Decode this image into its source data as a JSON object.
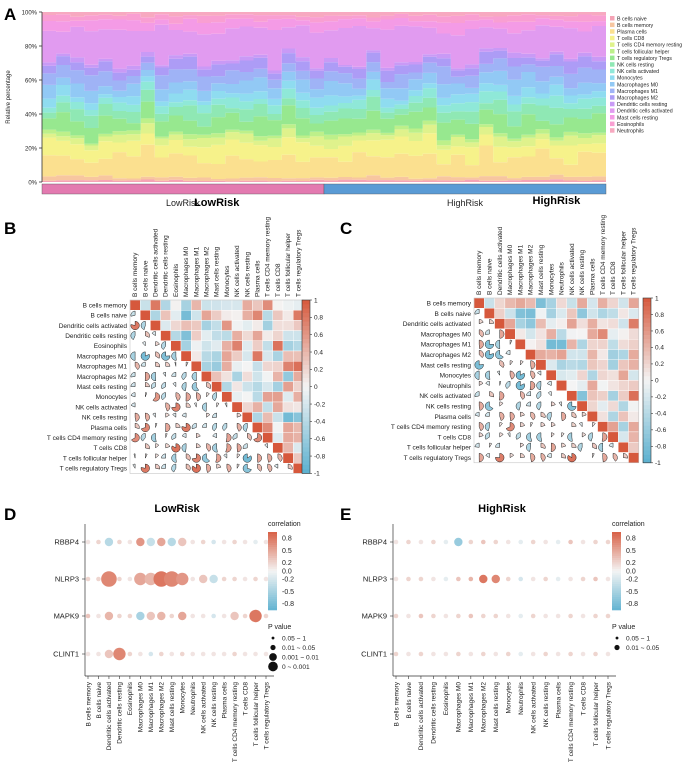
{
  "panels": {
    "a": "A",
    "b": "B",
    "c": "C",
    "d": "D",
    "e": "E"
  },
  "colors": {
    "pos": "#d6583c",
    "neg": "#5bb0cf",
    "mid": "#f4f4f4",
    "low_group": "#e37ab0",
    "high_group": "#5a9bd5"
  },
  "chart_data": [
    {
      "id": "A",
      "type": "area",
      "subtype": "stacked-100",
      "ylabel": "Relative percentage",
      "yticks": [
        "0%",
        "20%",
        "40%",
        "60%",
        "80%",
        "100%"
      ],
      "ylim": [
        0,
        100
      ],
      "n_samples": 40,
      "groups": [
        {
          "name": "LowRisk",
          "count": 20,
          "color": "#e37ab0"
        },
        {
          "name": "HighRisk",
          "count": 20,
          "color": "#5a9bd5"
        }
      ],
      "legend": [
        {
          "name": "B cells naive",
          "color": "#f5a3b5"
        },
        {
          "name": "B cells memory",
          "color": "#f7c6a0"
        },
        {
          "name": "Plasma cells",
          "color": "#fbe08f"
        },
        {
          "name": "T cells CD8",
          "color": "#f6f28a"
        },
        {
          "name": "T cells CD4 memory resting",
          "color": "#dff28c"
        },
        {
          "name": "T cells follicular helper",
          "color": "#bdf08a"
        },
        {
          "name": "T cells regulatory Tregs",
          "color": "#97e88f"
        },
        {
          "name": "NK cells resting",
          "color": "#8fe8b4"
        },
        {
          "name": "NK cells activated",
          "color": "#8fe8d8"
        },
        {
          "name": "Monocytes",
          "color": "#8fdcf0"
        },
        {
          "name": "Macrophages M0",
          "color": "#92c9f5"
        },
        {
          "name": "Macrophages M1",
          "color": "#9fb3f6"
        },
        {
          "name": "Macrophages M2",
          "color": "#ad9cf6"
        },
        {
          "name": "Dendritic cells resting",
          "color": "#c99af6"
        },
        {
          "name": "Dendritic cells activated",
          "color": "#e19bf0"
        },
        {
          "name": "Mast cells resting",
          "color": "#f49be6"
        },
        {
          "name": "Eosinophils",
          "color": "#f99fd2"
        },
        {
          "name": "Neutrophils",
          "color": "#f7a9c0"
        }
      ],
      "stack_order": [
        "B cells naive",
        "B cells memory",
        "Plasma cells",
        "T cells CD8",
        "T cells CD4 memory resting",
        "T cells follicular helper",
        "T cells regulatory Tregs",
        "NK cells resting",
        "NK cells activated",
        "Monocytes",
        "Macrophages M0",
        "Macrophages M1",
        "Macrophages M2",
        "Dendritic cells resting",
        "Dendritic cells activated",
        "Mast cells resting",
        "Eosinophils",
        "Neutrophils"
      ],
      "mean_composition": [
        1,
        2,
        12,
        8,
        4,
        2,
        8,
        6,
        5,
        4,
        6,
        7,
        5,
        2,
        18,
        5,
        3,
        2
      ]
    },
    {
      "id": "B",
      "type": "heatmap",
      "subtype": "correlation-matrix",
      "title": "LowRisk",
      "labels": [
        "B cells memory",
        "B cells naive",
        "Dendritic cells activated",
        "Dendritic cells resting",
        "Eosinophils",
        "Macrophages M0",
        "Macrophages M1",
        "Macrophages M2",
        "Mast cells resting",
        "Monocytes",
        "NK cells activated",
        "NK cells resting",
        "Plasma cells",
        "T cells CD4 memory resting",
        "T cells CD8",
        "T cells follicular helper",
        "T cells regulatory Tregs"
      ],
      "colorbar_ticks": [
        "1",
        "0.8",
        "0.6",
        "0.4",
        "0.2",
        "0",
        "-0.2",
        "-0.4",
        "-0.6",
        "-0.8",
        "-1"
      ],
      "range": [
        -1,
        1
      ],
      "seed": 11
    },
    {
      "id": "C",
      "type": "heatmap",
      "subtype": "correlation-matrix",
      "title": "HighRisk",
      "labels": [
        "B cells memory",
        "B cells naive",
        "Dendritic cells activated",
        "Macrophages M0",
        "Macrophages M1",
        "Macrophages M2",
        "Mast cells resting",
        "Monocytes",
        "Neutrophils",
        "NK cells activated",
        "NK cells resting",
        "Plasma cells",
        "T cells CD4 memory resting",
        "T cells CD8",
        "T cells follicular helper",
        "T cells regulatory Tregs"
      ],
      "colorbar_ticks": [
        "1",
        "0.8",
        "0.6",
        "0.4",
        "0.2",
        "0",
        "-0.2",
        "-0.4",
        "-0.6",
        "-0.8",
        "-1"
      ],
      "range": [
        -1,
        1
      ],
      "seed": 29
    },
    {
      "id": "D",
      "type": "scatter",
      "subtype": "dot-plot",
      "title": "LowRisk",
      "genes": [
        "RBBP4",
        "NLRP3",
        "MAPK9",
        "CLINT1"
      ],
      "cells": [
        "B cells memory",
        "B cells naive",
        "Dendritic cells activated",
        "Dendritic cells resting",
        "Eosinophils",
        "Macrophages M0",
        "Macrophages M1",
        "Macrophages M2",
        "Mast cells resting",
        "Monocytes",
        "Neutrophils",
        "NK cells activated",
        "NK cells resting",
        "Plasma cells",
        "T cells CD4 memory resting",
        "T cells CD8",
        "T cells follicular helper",
        "T cells regulatory Tregs"
      ],
      "correlation": [
        [
          0.1,
          0.2,
          -0.4,
          0.2,
          0.1,
          0.6,
          -0.3,
          0.5,
          -0.4,
          0.3,
          0.1,
          0.2,
          -0.2,
          0.1,
          0.2,
          0.1,
          -0.1,
          0.1
        ],
        [
          0.2,
          0.2,
          0.7,
          0.2,
          0.1,
          0.5,
          0.4,
          0.8,
          0.7,
          0.6,
          0.1,
          0.3,
          -0.3,
          0.2,
          0.2,
          0.1,
          0.2,
          0.1
        ],
        [
          0.3,
          0.1,
          0.4,
          0.2,
          0.2,
          -0.5,
          0.3,
          0.4,
          0.2,
          0.5,
          0.1,
          0.1,
          -0.2,
          0.1,
          0.3,
          0.2,
          0.8,
          0.2
        ],
        [
          0.1,
          0.1,
          0.3,
          0.7,
          0.2,
          0.1,
          -0.2,
          0.2,
          0.1,
          0.2,
          0.1,
          0.1,
          0.1,
          0.1,
          0.2,
          0.1,
          0.1,
          0.1
        ]
      ],
      "pvalue_class": [
        [
          0,
          0,
          1,
          0,
          0,
          1,
          1,
          1,
          1,
          1,
          0,
          0,
          0,
          0,
          0,
          0,
          0,
          0
        ],
        [
          0,
          0,
          3,
          0,
          0,
          2,
          2,
          3,
          3,
          2,
          0,
          1,
          1,
          0,
          0,
          0,
          0,
          0
        ],
        [
          0,
          0,
          1,
          0,
          0,
          1,
          1,
          1,
          0,
          1,
          0,
          0,
          0,
          0,
          1,
          0,
          2,
          0
        ],
        [
          0,
          0,
          1,
          2,
          0,
          0,
          0,
          0,
          0,
          0,
          0,
          0,
          0,
          0,
          0,
          0,
          0,
          0
        ]
      ],
      "legend": {
        "corr_title": "correlation",
        "corr_ticks": [
          "0.8",
          "0.5",
          "0.2",
          "0.0",
          "-0.2",
          "-0.5",
          "-0.8"
        ],
        "corr_values": [
          0.8,
          0.5,
          0.2,
          0.0,
          -0.2,
          -0.5,
          -0.8
        ],
        "p_title": "P value",
        "p_classes": [
          "0.05 ~ 1",
          "0.01 ~ 0.05",
          "0.001 ~ 0.01",
          "0 ~ 0.001"
        ]
      }
    },
    {
      "id": "E",
      "type": "scatter",
      "subtype": "dot-plot",
      "title": "HighRisk",
      "genes": [
        "RBBP4",
        "NLRP3",
        "MAPK9",
        "CLINT1"
      ],
      "cells": [
        "B cells memory",
        "B cells naive",
        "Dendritic cells activated",
        "Dendritic cells resting",
        "Eosinophils",
        "Macrophages M0",
        "Macrophages M1",
        "Macrophages M2",
        "Mast cells resting",
        "Monocytes",
        "Neutrophils",
        "NK cells activated",
        "NK cells resting",
        "Plasma cells",
        "T cells CD4 memory resting",
        "T cells CD8",
        "T cells follicular helper",
        "T cells regulatory Tregs"
      ],
      "correlation": [
        [
          0.1,
          0.2,
          0.1,
          0.2,
          -0.1,
          -0.6,
          0.2,
          0.3,
          0.2,
          0.1,
          -0.1,
          0.2,
          0.1,
          -0.1,
          0.3,
          0.1,
          0.2,
          0.2
        ],
        [
          0.1,
          0.2,
          0.2,
          0.1,
          -0.1,
          0.3,
          0.4,
          0.8,
          0.7,
          0.2,
          -0.2,
          0.1,
          0.2,
          -0.1,
          0.1,
          0.2,
          0.3,
          0.1
        ],
        [
          0.2,
          0.1,
          0.3,
          0.2,
          0.1,
          0.2,
          0.3,
          0.2,
          0.2,
          0.1,
          -0.1,
          0.2,
          0.1,
          0.1,
          0.2,
          0.1,
          0.2,
          0.2
        ],
        [
          0.2,
          0.1,
          0.2,
          0.1,
          0.1,
          0.2,
          0.1,
          0.2,
          0.1,
          0.2,
          -0.1,
          0.1,
          0.2,
          0.1,
          0.2,
          0.1,
          0.2,
          0.1
        ]
      ],
      "pvalue_class": [
        [
          0,
          0,
          0,
          0,
          0,
          1,
          0,
          0,
          0,
          0,
          0,
          0,
          0,
          0,
          0,
          0,
          0,
          0
        ],
        [
          0,
          0,
          0,
          0,
          0,
          0,
          0,
          1,
          1,
          0,
          0,
          0,
          0,
          0,
          0,
          0,
          0,
          0
        ],
        [
          0,
          0,
          0,
          0,
          0,
          0,
          0,
          0,
          0,
          0,
          0,
          0,
          0,
          0,
          0,
          0,
          0,
          0
        ],
        [
          0,
          0,
          0,
          0,
          0,
          0,
          0,
          0,
          0,
          0,
          0,
          0,
          0,
          0,
          0,
          0,
          0,
          0
        ]
      ],
      "legend": {
        "corr_title": "correlation",
        "corr_ticks": [
          "0.8",
          "0.5",
          "0.2",
          "0.0",
          "-0.2",
          "-0.5",
          "-0.8"
        ],
        "corr_values": [
          0.8,
          0.5,
          0.2,
          0.0,
          -0.2,
          -0.5,
          -0.8
        ],
        "p_title": "P value",
        "p_classes": [
          "0.05 ~ 1",
          "0.01 ~ 0.05"
        ]
      }
    }
  ]
}
